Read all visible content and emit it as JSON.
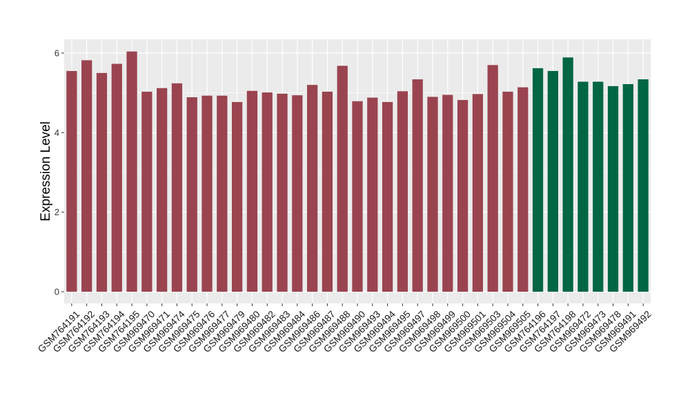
{
  "chart_data": {
    "type": "bar",
    "title": "",
    "xlabel": "",
    "ylabel": "Expression Level",
    "ylim": [
      0,
      6.15
    ],
    "yticks": [
      0,
      2,
      4,
      6
    ],
    "grid": true,
    "legend": "none",
    "colors": {
      "group1": "#9a4450",
      "group2": "#006644",
      "panel": "#ebebeb",
      "grid": "#ffffff"
    },
    "categories": [
      "GSM764191",
      "GSM764192",
      "GSM764193",
      "GSM764194",
      "GSM764195",
      "GSM969470",
      "GSM969471",
      "GSM969474",
      "GSM969475",
      "GSM969476",
      "GSM969477",
      "GSM969479",
      "GSM969480",
      "GSM969482",
      "GSM969483",
      "GSM969484",
      "GSM969486",
      "GSM969487",
      "GSM969488",
      "GSM969490",
      "GSM969493",
      "GSM969494",
      "GSM969495",
      "GSM969497",
      "GSM969498",
      "GSM969499",
      "GSM969500",
      "GSM969501",
      "GSM969503",
      "GSM969504",
      "GSM969505",
      "GSM764196",
      "GSM764197",
      "GSM764198",
      "GSM969472",
      "GSM969473",
      "GSM969478",
      "GSM969491",
      "GSM969492"
    ],
    "values": [
      5.55,
      5.82,
      5.5,
      5.73,
      6.04,
      5.03,
      5.12,
      5.24,
      4.89,
      4.93,
      4.93,
      4.77,
      5.05,
      5.01,
      4.98,
      4.94,
      5.2,
      5.03,
      5.68,
      4.79,
      4.88,
      4.77,
      5.04,
      5.34,
      4.9,
      4.95,
      4.82,
      4.97,
      5.7,
      5.03,
      5.14,
      5.62,
      5.55,
      5.89,
      5.28,
      5.28,
      5.17,
      5.22,
      5.34
    ],
    "groups": [
      1,
      1,
      1,
      1,
      1,
      1,
      1,
      1,
      1,
      1,
      1,
      1,
      1,
      1,
      1,
      1,
      1,
      1,
      1,
      1,
      1,
      1,
      1,
      1,
      1,
      1,
      1,
      1,
      1,
      1,
      1,
      2,
      2,
      2,
      2,
      2,
      2,
      2,
      2
    ]
  }
}
